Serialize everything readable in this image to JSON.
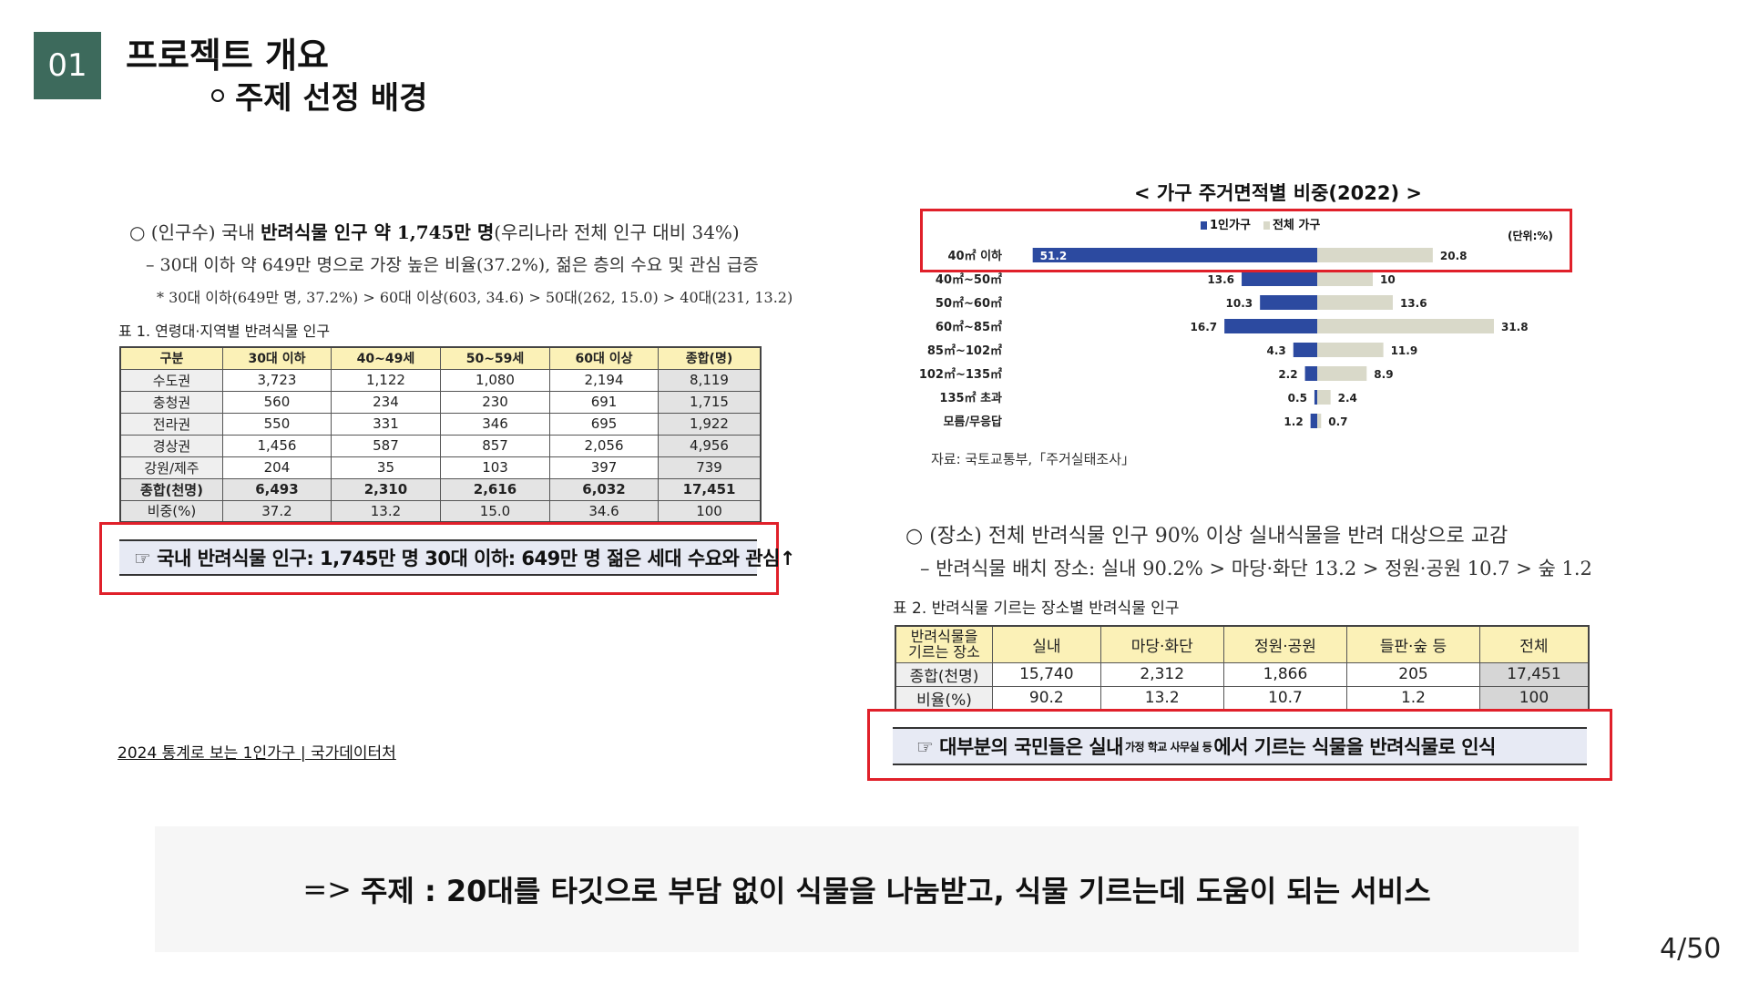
{
  "header": {
    "badge": "01",
    "title": "프로젝트 개요",
    "subtitle": "주제 선정 배경"
  },
  "left": {
    "para1_prefix": "○ (인구수) 국내 ",
    "para1_bold": "반려식물 인구 약 1,745만 명",
    "para1_suffix": "(우리나라 전체 인구 대비 34%)",
    "para2": "– 30대 이하 약 649만 명으로 가장 높은 비율(37.2%), 젊은 층의 수요 및 관심 급증",
    "para3": "* 30대 이하(649만 명, 37.2%) > 60대 이상(603, 34.6) > 50대(262, 15.0) > 40대(231, 13.2)",
    "table_caption": "표 1. 연령대·지역별 반려식물 인구",
    "table": {
      "headers": [
        "구분",
        "30대 이하",
        "40~49세",
        "50~59세",
        "60대 이상",
        "종합(명)"
      ],
      "rows": [
        [
          "수도권",
          "3,723",
          "1,122",
          "1,080",
          "2,194",
          "8,119"
        ],
        [
          "충청권",
          "560",
          "234",
          "230",
          "691",
          "1,715"
        ],
        [
          "전라권",
          "550",
          "331",
          "346",
          "695",
          "1,922"
        ],
        [
          "경상권",
          "1,456",
          "587",
          "857",
          "2,056",
          "4,956"
        ],
        [
          "강원/제주",
          "204",
          "35",
          "103",
          "397",
          "739"
        ],
        [
          "종합(천명)",
          "6,493",
          "2,310",
          "2,616",
          "6,032",
          "17,451"
        ],
        [
          "비중(%)",
          "37.2",
          "13.2",
          "15.0",
          "34.6",
          "100"
        ]
      ]
    },
    "banner": "☞ 국내 반려식물 인구: 1,745만 명 30대 이하: 649만 명 젊은 세대 수요와 관심↑",
    "source_link": "2024 통계로 보는 1인가구 | 국가데이터처"
  },
  "chart_data": {
    "type": "bar",
    "title": "< 가구 주거면적별 비중(2022) >",
    "unit_label": "(단위:%)",
    "categories": [
      "40㎡ 이하",
      "40㎡~50㎡",
      "50㎡~60㎡",
      "60㎡~85㎡",
      "85㎡~102㎡",
      "102㎡~135㎡",
      "135㎡ 초과",
      "모름/무응답"
    ],
    "series": [
      {
        "name": "1인가구",
        "values": [
          51.2,
          13.6,
          10.3,
          16.7,
          4.3,
          2.2,
          0.5,
          1.2
        ],
        "color": "#2c4aa0"
      },
      {
        "name": "전체 가구",
        "values": [
          20.8,
          10.0,
          13.6,
          31.8,
          11.9,
          8.9,
          2.4,
          0.7
        ],
        "color": "#d9d9c9"
      }
    ],
    "legend_position": "top",
    "source": "자료: 국토교통부,「주거실태조사」"
  },
  "right": {
    "para4": "○ (장소) 전체 반려식물 인구 90% 이상 실내식물을 반려 대상으로 교감",
    "para5": "– 반려식물 배치 장소: 실내 90.2% > 마당·화단 13.2 > 정원·공원 10.7 > 숲 1.2",
    "table_caption": "표 2. 반려식물 기르는 장소별 반려식물 인구",
    "table": {
      "header_first_line1": "반려식물을",
      "header_first_line2": "기르는 장소",
      "headers": [
        "실내",
        "마당·화단",
        "정원·공원",
        "들판·숲 등",
        "전체"
      ],
      "rows": [
        [
          "종합(천명)",
          "15,740",
          "2,312",
          "1,866",
          "205",
          "17,451"
        ],
        [
          "비율(%)",
          "90.2",
          "13.2",
          "10.7",
          "1.2",
          "100"
        ]
      ]
    },
    "banner_prefix": "☞ 대부분의 국민들은 실내",
    "banner_sup": "가정 학교 사무실 등",
    "banner_suffix": "에서 기르는 식물을 반려식물로 인식"
  },
  "conclusion": {
    "arrow": "=>",
    "text": "주제 : 20대를 타깃으로 부담 없이 식물을 나눔받고, 식물 기르는데 도움이 되는 서비스"
  },
  "page_number": "4/50"
}
